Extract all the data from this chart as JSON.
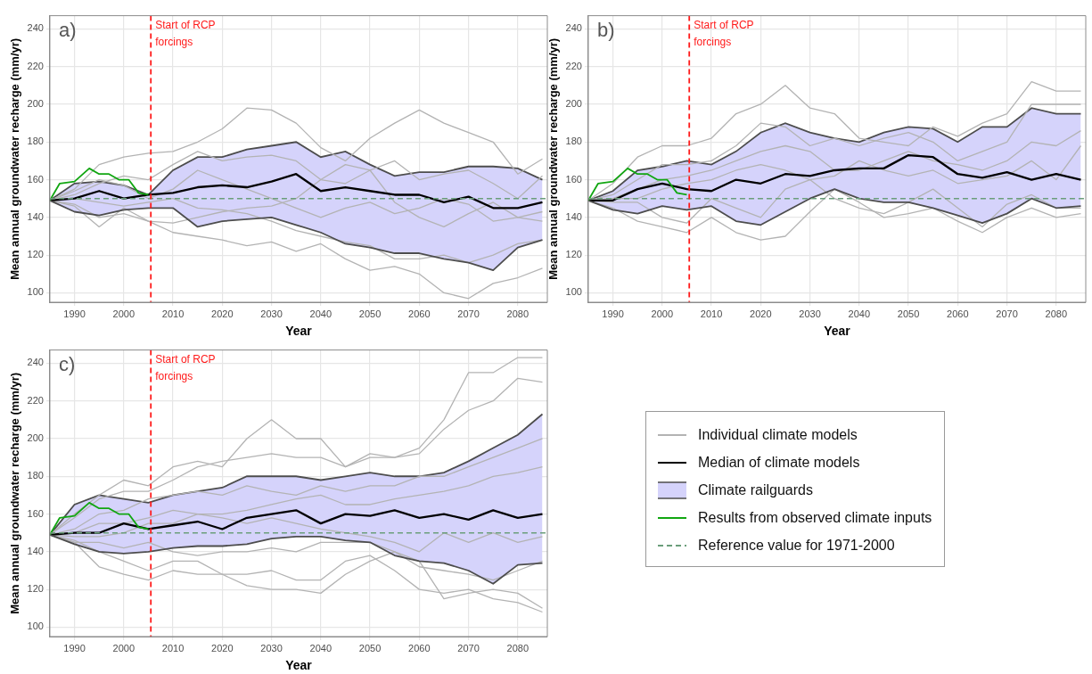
{
  "chart_data": [
    {
      "type": "line",
      "title": "a)",
      "xlabel": "Year",
      "ylabel": "Mean annual groundwater recharge (mm/yr)",
      "xlim": [
        1985,
        2086
      ],
      "xticks": [
        1990,
        2000,
        2010,
        2020,
        2030,
        2040,
        2050,
        2060,
        2070,
        2080
      ],
      "ylim": [
        95,
        247
      ],
      "yticks": [
        100,
        120,
        140,
        160,
        180,
        200,
        220,
        240
      ],
      "grid": true,
      "legend": false,
      "x": [
        1985,
        1990,
        1995,
        2000,
        2005,
        2010,
        2015,
        2020,
        2025,
        2030,
        2035,
        2040,
        2045,
        2050,
        2055,
        2060,
        2065,
        2070,
        2075,
        2080,
        2085
      ],
      "ref_lines": [
        {
          "axis": "x",
          "value": 2005.5,
          "label": "Start of RCP forcings",
          "color": "#ff1a1a",
          "line_style": "dashed"
        }
      ],
      "series": [
        {
          "type": "line",
          "color": "#b3b3b3",
          "values": [
            149,
            155,
            168,
            172,
            174,
            175,
            180,
            187,
            198,
            197,
            190,
            177,
            170,
            182,
            190,
            197,
            190,
            185,
            180,
            163,
            171
          ]
        },
        {
          "type": "line",
          "color": "#b3b3b3",
          "values": [
            149,
            147,
            140,
            142,
            138,
            132,
            130,
            128,
            125,
            127,
            122,
            126,
            118,
            112,
            114,
            110,
            100,
            97,
            105,
            108,
            113
          ]
        },
        {
          "type": "line",
          "color": "#b3b3b3",
          "values": [
            149,
            146,
            135,
            145,
            138,
            137,
            140,
            143,
            145,
            146,
            150,
            160,
            168,
            165,
            148,
            140,
            135,
            142,
            148,
            140,
            138
          ]
        },
        {
          "type": "line",
          "color": "#b3b3b3",
          "values": [
            149,
            152,
            158,
            162,
            160,
            168,
            175,
            170,
            172,
            173,
            170,
            160,
            158,
            165,
            170,
            160,
            163,
            165,
            158,
            150,
            162
          ]
        },
        {
          "type": "line",
          "color": "#b3b3b3",
          "values": [
            149,
            150,
            148,
            146,
            148,
            150,
            145,
            144,
            142,
            138,
            133,
            130,
            127,
            125,
            118,
            118,
            120,
            116,
            120,
            126,
            128
          ]
        },
        {
          "type": "line",
          "color": "#b3b3b3",
          "values": [
            149,
            154,
            160,
            157,
            150,
            155,
            165,
            160,
            155,
            150,
            145,
            140,
            145,
            148,
            142,
            145,
            150,
            147,
            138,
            140,
            143
          ]
        },
        {
          "type": "line",
          "color": "#000000",
          "values": [
            149,
            150,
            154,
            150,
            152,
            153,
            156,
            157,
            156,
            159,
            163,
            154,
            156,
            154,
            152,
            152,
            148,
            151,
            145,
            145,
            148
          ]
        },
        {
          "color": "#4d4d4d",
          "values": [
            149,
            143,
            141,
            144,
            145,
            145,
            135,
            138,
            139,
            140,
            136,
            132,
            126,
            124,
            121,
            121,
            118,
            116,
            112,
            124,
            128
          ]
        },
        {
          "type": "area",
          "color": "#d5d3fb",
          "values": [
            149,
            158,
            159,
            157,
            152,
            165,
            172,
            172,
            176,
            178,
            180,
            172,
            175,
            168,
            162,
            164,
            164,
            167,
            167,
            166,
            160
          ]
        },
        {
          "type": "line",
          "color": "#11a611",
          "x": [
            1985,
            1987,
            1990,
            1993,
            1995,
            1997,
            1999,
            2001,
            2003,
            2005
          ],
          "values": [
            149,
            158,
            159,
            166,
            163,
            163,
            160,
            160,
            153,
            152
          ]
        },
        {
          "type": "line",
          "color": "#6b9e7b",
          "line_style": "dashed",
          "x": [
            1985,
            2086
          ],
          "values": [
            150,
            150
          ]
        }
      ]
    },
    {
      "type": "line",
      "title": "b)",
      "xlabel": "Year",
      "ylabel": "Mean annual groundwater recharge (mm/yr)",
      "xlim": [
        1985,
        2086
      ],
      "xticks": [
        1990,
        2000,
        2010,
        2020,
        2030,
        2040,
        2050,
        2060,
        2070,
        2080
      ],
      "ylim": [
        95,
        247
      ],
      "yticks": [
        100,
        120,
        140,
        160,
        180,
        200,
        220,
        240
      ],
      "grid": true,
      "legend": false,
      "x": [
        1985,
        1990,
        1995,
        2000,
        2005,
        2010,
        2015,
        2020,
        2025,
        2030,
        2035,
        2040,
        2045,
        2050,
        2055,
        2060,
        2065,
        2070,
        2075,
        2080,
        2085
      ],
      "ref_lines": [
        {
          "axis": "x",
          "value": 2005.5,
          "label": "Start of RCP forcings",
          "color": "#ff1a1a",
          "line_style": "dashed"
        }
      ],
      "series": [
        {
          "type": "line",
          "color": "#b3b3b3",
          "values": [
            149,
            158,
            172,
            178,
            178,
            182,
            195,
            200,
            210,
            198,
            195,
            182,
            180,
            178,
            188,
            183,
            190,
            195,
            212,
            207,
            207
          ]
        },
        {
          "type": "line",
          "color": "#b3b3b3",
          "values": [
            149,
            145,
            138,
            135,
            132,
            140,
            132,
            128,
            130,
            143,
            155,
            148,
            140,
            142,
            145,
            138,
            132,
            140,
            145,
            140,
            142
          ]
        },
        {
          "type": "line",
          "color": "#b3b3b3",
          "values": [
            149,
            148,
            148,
            140,
            137,
            150,
            145,
            140,
            155,
            160,
            150,
            145,
            142,
            148,
            155,
            145,
            135,
            147,
            152,
            145,
            145
          ]
        },
        {
          "type": "line",
          "color": "#b3b3b3",
          "values": [
            149,
            152,
            160,
            168,
            168,
            170,
            178,
            190,
            188,
            178,
            182,
            178,
            182,
            185,
            180,
            170,
            175,
            180,
            200,
            200,
            200
          ]
        },
        {
          "type": "line",
          "color": "#b3b3b3",
          "values": [
            149,
            150,
            155,
            160,
            162,
            165,
            170,
            175,
            178,
            175,
            165,
            165,
            170,
            175,
            170,
            168,
            165,
            170,
            180,
            178,
            186
          ]
        },
        {
          "type": "line",
          "color": "#b3b3b3",
          "values": [
            149,
            150,
            150,
            155,
            158,
            160,
            165,
            168,
            165,
            160,
            162,
            170,
            165,
            162,
            165,
            158,
            160,
            162,
            170,
            160,
            178
          ]
        },
        {
          "type": "line",
          "color": "#000000",
          "values": [
            149,
            149,
            155,
            158,
            155,
            154,
            160,
            158,
            163,
            162,
            165,
            166,
            166,
            173,
            172,
            163,
            161,
            164,
            160,
            163,
            160
          ]
        },
        {
          "color": "#4d4d4d",
          "values": [
            149,
            144,
            142,
            146,
            144,
            146,
            138,
            136,
            143,
            150,
            155,
            150,
            148,
            148,
            145,
            141,
            137,
            142,
            150,
            145,
            146
          ]
        },
        {
          "type": "area",
          "color": "#d5d3fb",
          "values": [
            149,
            154,
            165,
            167,
            170,
            168,
            175,
            185,
            190,
            185,
            182,
            180,
            185,
            188,
            187,
            180,
            188,
            188,
            198,
            195,
            195
          ]
        },
        {
          "type": "line",
          "color": "#11a611",
          "x": [
            1985,
            1987,
            1990,
            1993,
            1995,
            1997,
            1999,
            2001,
            2003,
            2005
          ],
          "values": [
            149,
            158,
            159,
            166,
            163,
            163,
            160,
            160,
            153,
            152
          ]
        },
        {
          "type": "line",
          "color": "#6b9e7b",
          "line_style": "dashed",
          "x": [
            1985,
            2086
          ],
          "values": [
            150,
            150
          ]
        }
      ]
    },
    {
      "type": "line",
      "title": "c)",
      "xlabel": "Year",
      "ylabel": "Mean annual groundwater recharge (mm/yr)",
      "xlim": [
        1985,
        2086
      ],
      "xticks": [
        1990,
        2000,
        2010,
        2020,
        2030,
        2040,
        2050,
        2060,
        2070,
        2080
      ],
      "ylim": [
        95,
        247
      ],
      "yticks": [
        100,
        120,
        140,
        160,
        180,
        200,
        220,
        240
      ],
      "grid": true,
      "legend": "right",
      "x": [
        1985,
        1990,
        1995,
        2000,
        2005,
        2010,
        2015,
        2020,
        2025,
        2030,
        2035,
        2040,
        2045,
        2050,
        2055,
        2060,
        2065,
        2070,
        2075,
        2080,
        2085
      ],
      "ref_lines": [
        {
          "axis": "x",
          "value": 2005.5,
          "label": "Start of RCP forcings",
          "color": "#ff1a1a",
          "line_style": "dashed"
        }
      ],
      "series": [
        {
          "type": "line",
          "name": "Individual climate models",
          "color": "#b3b3b3",
          "values": [
            149,
            160,
            170,
            178,
            175,
            185,
            188,
            185,
            200,
            210,
            200,
            200,
            185,
            192,
            190,
            195,
            210,
            235,
            235,
            243,
            243
          ]
        },
        {
          "type": "line",
          "color": "#b3b3b3",
          "values": [
            149,
            158,
            168,
            172,
            172,
            178,
            185,
            188,
            190,
            192,
            190,
            190,
            185,
            190,
            190,
            192,
            205,
            215,
            220,
            232,
            230
          ]
        },
        {
          "type": "line",
          "color": "#b3b3b3",
          "values": [
            149,
            145,
            132,
            128,
            125,
            130,
            128,
            128,
            122,
            120,
            120,
            118,
            128,
            135,
            140,
            135,
            115,
            118,
            120,
            118,
            110
          ]
        },
        {
          "type": "line",
          "color": "#b3b3b3",
          "values": [
            149,
            146,
            140,
            135,
            130,
            135,
            135,
            128,
            128,
            130,
            125,
            125,
            135,
            138,
            130,
            120,
            118,
            120,
            115,
            113,
            108
          ]
        },
        {
          "type": "line",
          "color": "#b3b3b3",
          "values": [
            149,
            152,
            160,
            162,
            168,
            170,
            172,
            170,
            175,
            172,
            170,
            175,
            172,
            175,
            175,
            180,
            180,
            185,
            190,
            195,
            200
          ]
        },
        {
          "type": "line",
          "color": "#b3b3b3",
          "values": [
            149,
            148,
            148,
            150,
            155,
            155,
            160,
            160,
            162,
            165,
            168,
            170,
            165,
            165,
            168,
            170,
            172,
            175,
            180,
            182,
            185
          ]
        },
        {
          "type": "line",
          "color": "#b3b3b3",
          "values": [
            149,
            150,
            155,
            155,
            158,
            162,
            160,
            158,
            155,
            158,
            155,
            152,
            150,
            148,
            145,
            140,
            150,
            145,
            150,
            145,
            148
          ]
        },
        {
          "type": "line",
          "color": "#b3b3b3",
          "values": [
            149,
            145,
            145,
            142,
            145,
            140,
            138,
            140,
            140,
            142,
            140,
            145,
            145,
            145,
            140,
            132,
            130,
            128,
            125,
            130,
            135
          ]
        },
        {
          "type": "line",
          "name": "Median of climate models",
          "color": "#000000",
          "values": [
            149,
            150,
            150,
            155,
            152,
            154,
            156,
            152,
            158,
            160,
            162,
            155,
            160,
            159,
            162,
            158,
            160,
            157,
            162,
            158,
            160
          ]
        },
        {
          "color": "#4d4d4d",
          "values": [
            149,
            144,
            140,
            139,
            140,
            142,
            143,
            143,
            144,
            147,
            148,
            148,
            146,
            145,
            138,
            135,
            134,
            130,
            123,
            133,
            134
          ]
        },
        {
          "type": "area",
          "name": "Climate railguards",
          "color": "#d5d3fb",
          "values": [
            149,
            165,
            170,
            168,
            166,
            170,
            172,
            174,
            180,
            180,
            180,
            178,
            180,
            182,
            180,
            180,
            182,
            188,
            195,
            202,
            213
          ]
        },
        {
          "type": "line",
          "name": "Results from observed climate inputs",
          "color": "#11a611",
          "x": [
            1985,
            1987,
            1990,
            1993,
            1995,
            1997,
            1999,
            2001,
            2003,
            2005
          ],
          "values": [
            149,
            158,
            159,
            166,
            163,
            163,
            160,
            160,
            153,
            152
          ]
        },
        {
          "type": "line",
          "name": "Reference value for 1971-2000",
          "color": "#6b9e7b",
          "line_style": "dashed",
          "x": [
            1985,
            2086
          ],
          "values": [
            150,
            150
          ]
        }
      ]
    }
  ]
}
